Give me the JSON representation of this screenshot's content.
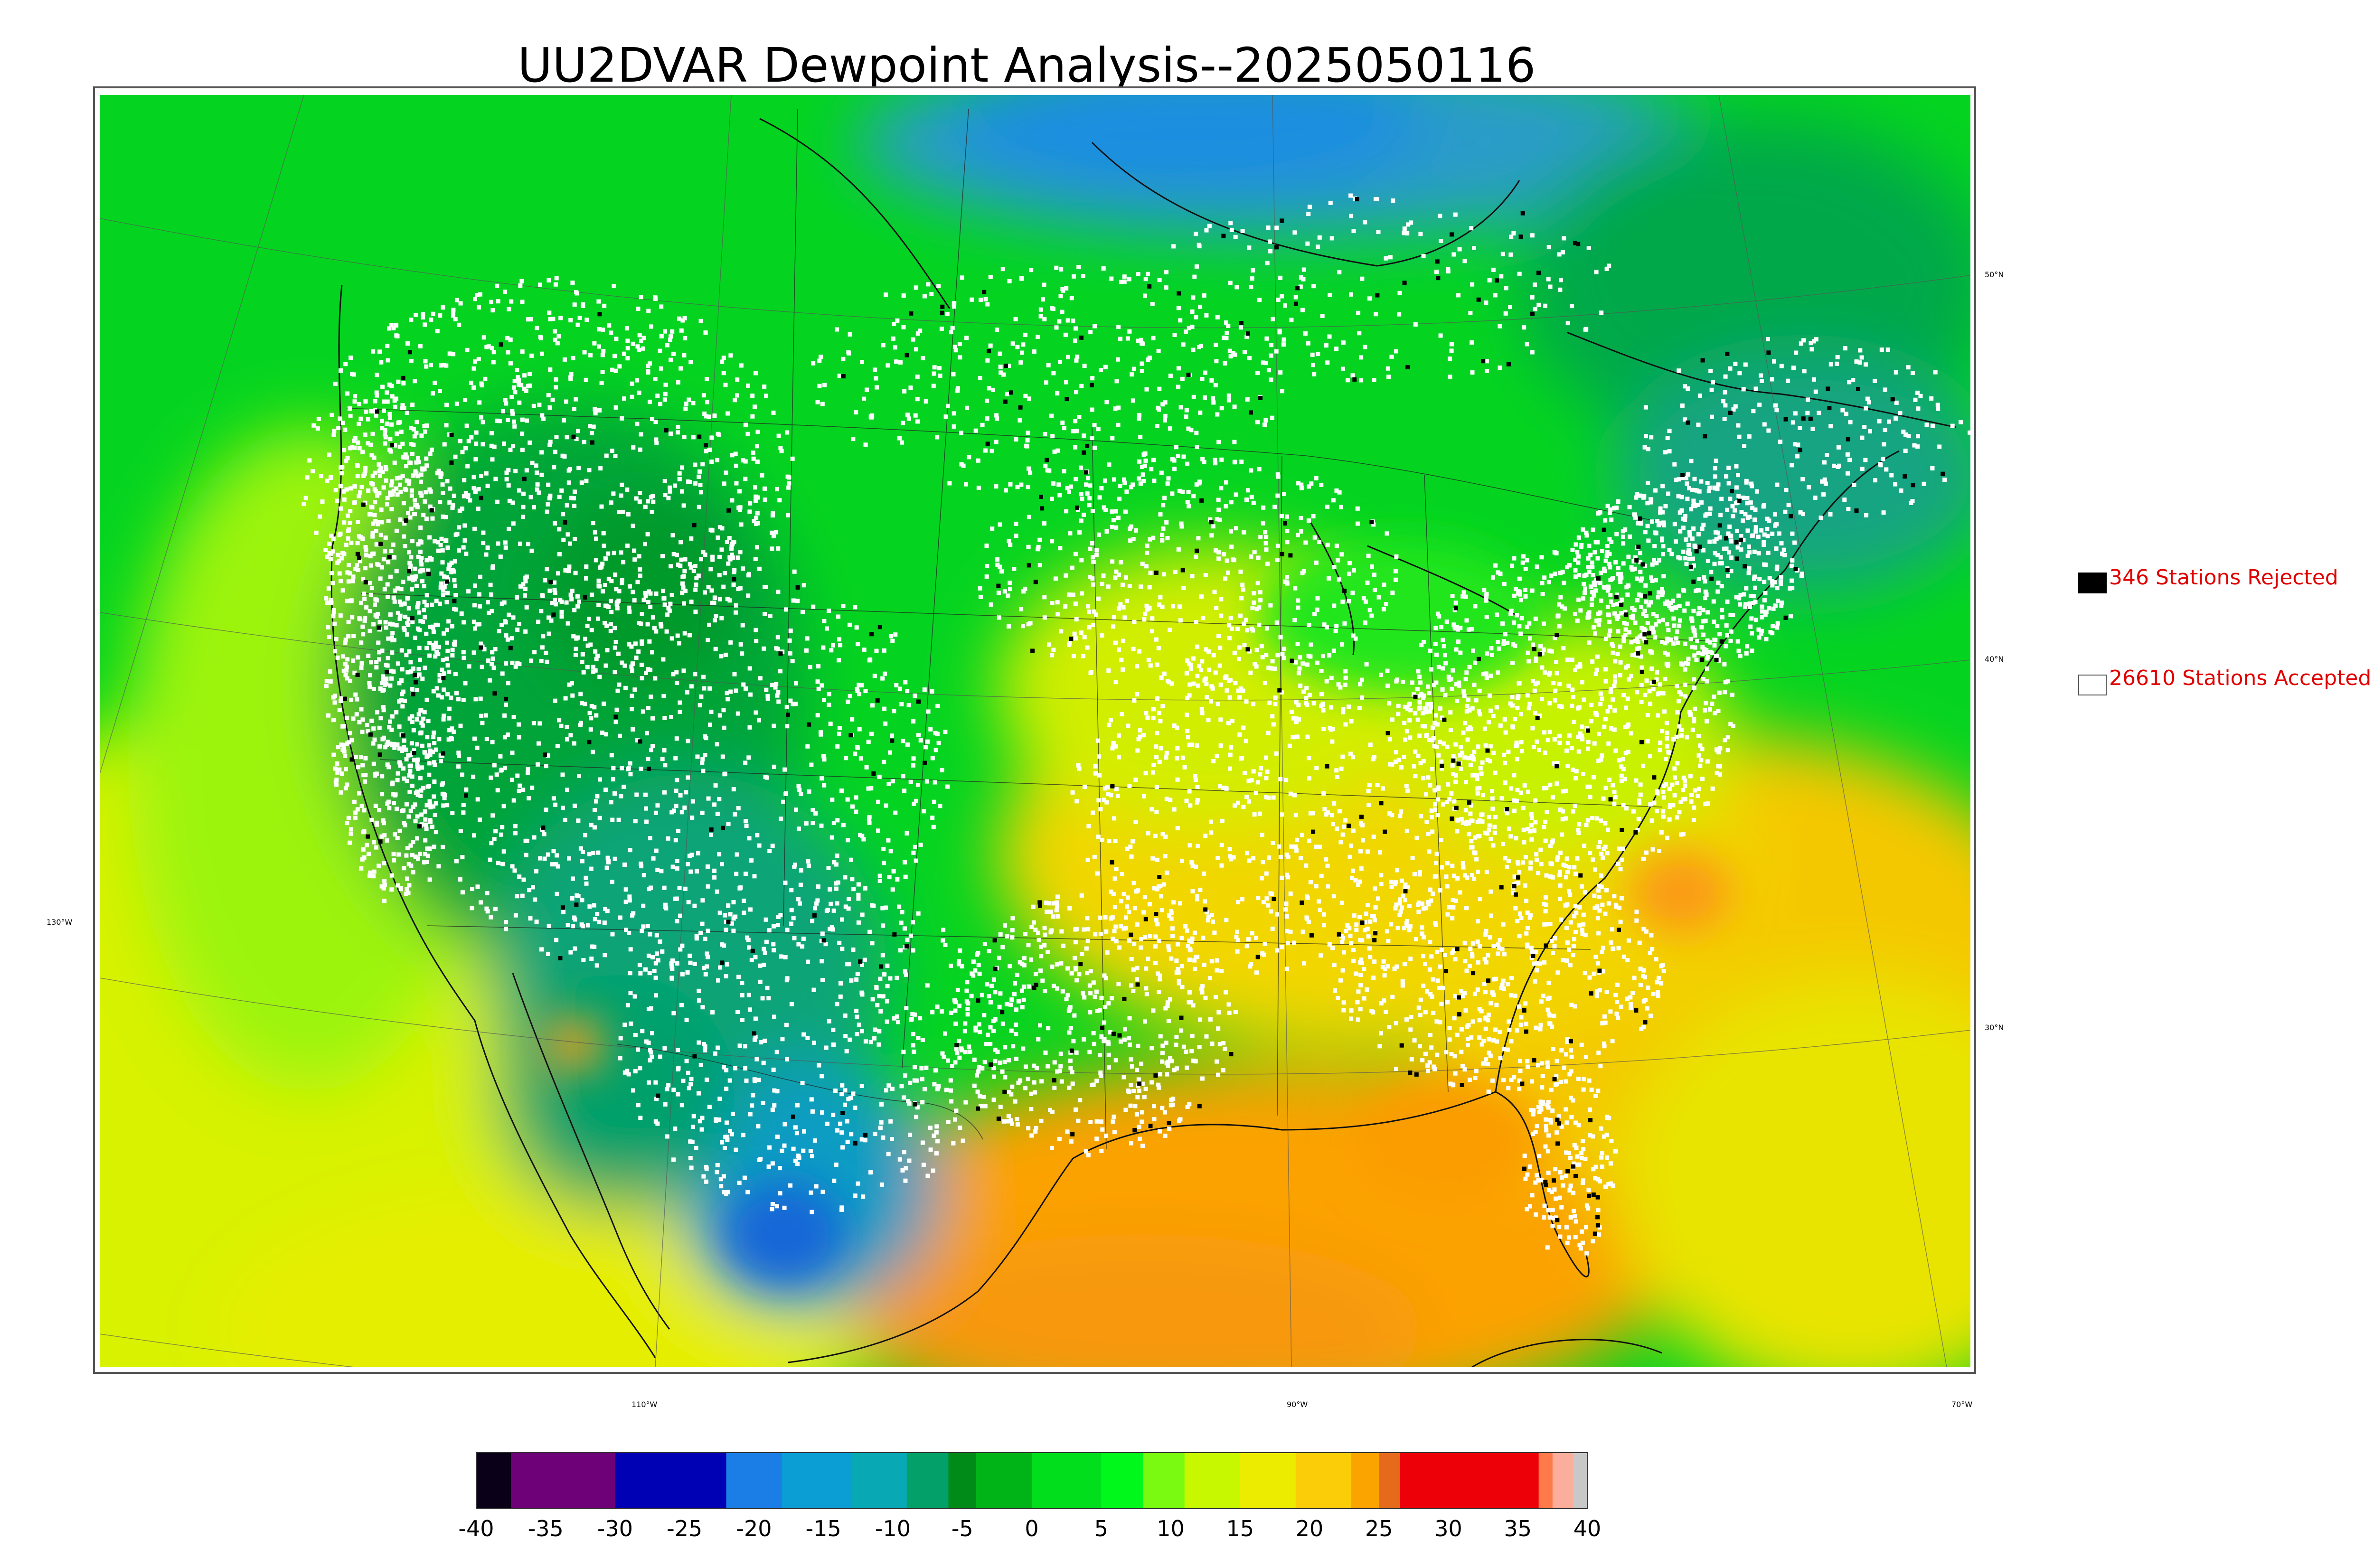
{
  "title": "UU2DVAR Dewpoint Analysis--2025050116",
  "latitude_labels": [
    "50°N",
    "40°N",
    "30°N"
  ],
  "longitude_labels": [
    "130°W",
    "110°W",
    "90°W",
    "70°W"
  ],
  "legend": {
    "rejected": {
      "label": "346 Stations Rejected",
      "count": 346,
      "marker_color": "#000000"
    },
    "accepted": {
      "label": "26610 Stations Accepted",
      "count": 26610,
      "marker_color": "#ffffff"
    }
  },
  "colorbar": {
    "min": -40,
    "max": 40,
    "tick_labels": [
      "-40",
      "-35",
      "-30",
      "-25",
      "-20",
      "-15",
      "-10",
      "-5",
      "0",
      "5",
      "10",
      "15",
      "20",
      "25",
      "30",
      "35",
      "40"
    ],
    "segments": [
      {
        "from": -40,
        "to": -37.5,
        "color": "#0a0018"
      },
      {
        "from": -37.5,
        "to": -30,
        "color": "#6e0078"
      },
      {
        "from": -30,
        "to": -22,
        "color": "#0000b4"
      },
      {
        "from": -22,
        "to": -18,
        "color": "#1a7ee6"
      },
      {
        "from": -18,
        "to": -13,
        "color": "#0a9ed4"
      },
      {
        "from": -13,
        "to": -9,
        "color": "#08a8b4"
      },
      {
        "from": -9,
        "to": -6,
        "color": "#04a06a"
      },
      {
        "from": -6,
        "to": -4,
        "color": "#008a18"
      },
      {
        "from": -4,
        "to": 0,
        "color": "#00b418"
      },
      {
        "from": 0,
        "to": 5,
        "color": "#00de1c"
      },
      {
        "from": 5,
        "to": 8,
        "color": "#00f81a"
      },
      {
        "from": 8,
        "to": 11,
        "color": "#7afa10"
      },
      {
        "from": 11,
        "to": 15,
        "color": "#c8f800"
      },
      {
        "from": 15,
        "to": 19,
        "color": "#ecec00"
      },
      {
        "from": 19,
        "to": 23,
        "color": "#fbcd08"
      },
      {
        "from": 23,
        "to": 25,
        "color": "#fba400"
      },
      {
        "from": 25,
        "to": 26.5,
        "color": "#e66a1c"
      },
      {
        "from": 26.5,
        "to": 36.5,
        "color": "#ee0008"
      },
      {
        "from": 36.5,
        "to": 37.5,
        "color": "#ff7a4a"
      },
      {
        "from": 37.5,
        "to": 39,
        "color": "#fcae9c"
      },
      {
        "from": 39,
        "to": 40,
        "color": "#c8c8c8"
      }
    ]
  }
}
